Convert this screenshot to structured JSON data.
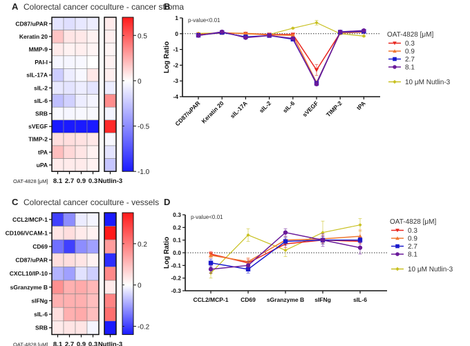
{
  "chart_data": [
    {
      "id": "A",
      "type": "heatmap",
      "panel_letter": "A",
      "title": "Colorectal cancer coculture - cancer stroma",
      "rows": [
        "CD87/uPAR",
        "Keratin 20",
        "MMP-9",
        "PAI-I",
        "sIL-17A",
        "sIL-2",
        "sIL-6",
        "SRB",
        "sVEGF",
        "TIMP-2",
        "tPA",
        "uPA"
      ],
      "x_prefix": "OAT-4828 [μM]",
      "columns": [
        "8.1",
        "2.7",
        "0.9",
        "0.3",
        "Nutlin-3"
      ],
      "values": [
        [
          -0.12,
          -0.14,
          -0.1,
          -0.08,
          0.06
        ],
        [
          0.18,
          0.08,
          0.07,
          0.04,
          0.05
        ],
        [
          0.06,
          0.04,
          0.05,
          0.03,
          0.03
        ],
        [
          -0.04,
          -0.04,
          -0.03,
          0.0,
          0.04
        ],
        [
          -0.22,
          -0.08,
          -0.03,
          0.07,
          0.05
        ],
        [
          -0.1,
          -0.12,
          -0.08,
          -0.12,
          -0.08
        ],
        [
          -0.28,
          -0.2,
          -0.08,
          -0.05,
          0.35
        ],
        [
          -0.03,
          -0.04,
          -0.03,
          -0.03,
          -0.05
        ],
        [
          -1.0,
          -1.0,
          -1.0,
          -1.0,
          0.65
        ],
        [
          0.1,
          0.1,
          0.09,
          0.07,
          -0.03
        ],
        [
          0.2,
          0.12,
          0.08,
          0.04,
          -0.12
        ],
        [
          0.06,
          0.06,
          0.06,
          0.04,
          -0.25
        ]
      ],
      "colorbar": {
        "min": -1.0,
        "max": 0.7,
        "ticks": [
          0.5,
          0,
          -0.5,
          -1.0
        ],
        "tick_labels": [
          "0.5",
          "0",
          "-0.5",
          "-1.0"
        ]
      },
      "colors": {
        "low": "#1a1aff",
        "mid": "#ffffff",
        "high": "#ff1a1a"
      }
    },
    {
      "id": "B",
      "type": "line",
      "panel_letter": "B",
      "title": "",
      "annotation": "p-value<0.01",
      "ylabel": "Log Ratio",
      "xlabel": "",
      "ylim": [
        -4,
        1
      ],
      "yticks": [
        1,
        0,
        -1,
        -2,
        -3,
        -4
      ],
      "categories": [
        "CD87/uPAR",
        "Keratin 20",
        "sIL-17A",
        "sIL-2",
        "sIL-6",
        "sVEGF",
        "TIMP-2",
        "tPA"
      ],
      "legend_title": "OAT-4828 [μM]",
      "legend_position": "right",
      "series": [
        {
          "name": "0.3",
          "color": "#e8261f",
          "marker": "triangle-down",
          "values": [
            -0.05,
            0.05,
            0.0,
            -0.05,
            -0.05,
            -2.3,
            0.05,
            0.1
          ],
          "errors": [
            0.05,
            0.05,
            0.08,
            0.05,
            0.05,
            0.35,
            0.05,
            0.05
          ]
        },
        {
          "name": "0.9",
          "color": "#f07830",
          "marker": "triangle-up",
          "values": [
            -0.08,
            0.05,
            0.0,
            -0.08,
            -0.1,
            -3.1,
            0.05,
            0.12
          ],
          "errors": [
            0.05,
            0.05,
            0.05,
            0.05,
            0.05,
            0.1,
            0.05,
            0.05
          ]
        },
        {
          "name": "2.7",
          "color": "#1a1acc",
          "marker": "square",
          "values": [
            -0.1,
            0.08,
            -0.2,
            -0.12,
            -0.35,
            -3.15,
            0.1,
            0.15
          ],
          "errors": [
            0.05,
            0.05,
            0.05,
            0.05,
            0.05,
            0.1,
            0.05,
            0.05
          ]
        },
        {
          "name": "8.1",
          "color": "#6a1a9a",
          "marker": "circle",
          "values": [
            -0.12,
            0.12,
            -0.25,
            -0.12,
            -0.3,
            -3.2,
            0.12,
            0.2
          ],
          "errors": [
            0.05,
            0.05,
            0.05,
            0.05,
            0.05,
            0.1,
            0.05,
            0.05
          ]
        },
        {
          "name": "10 μM Nutlin-3",
          "color": "#c8c020",
          "marker": "diamond",
          "values": [
            0.02,
            0.05,
            0.03,
            -0.05,
            0.35,
            0.7,
            0.0,
            -0.15
          ],
          "errors": [
            0.05,
            0.05,
            0.05,
            0.05,
            0.05,
            0.15,
            0.05,
            0.05
          ]
        }
      ]
    },
    {
      "id": "C",
      "type": "heatmap",
      "panel_letter": "C",
      "title": "Colorectal cancer coculture - vessels",
      "rows": [
        "CCL2/MCP-1",
        "CD106/VCAM-1",
        "CD69",
        "CD87/uPAR",
        "CXCL10/IP-10",
        "sGranzyme B",
        "sIFNg",
        "sIL-6",
        "SRB"
      ],
      "x_prefix": "OAT-4828 [μM]",
      "columns": [
        "8.1",
        "2.7",
        "0.9",
        "0.3",
        "Nutlin-3"
      ],
      "values": [
        [
          -0.2,
          -0.12,
          -0.02,
          -0.01,
          -0.24
        ],
        [
          0.04,
          0.05,
          0.03,
          0.02,
          0.35
        ],
        [
          -0.15,
          -0.2,
          -0.12,
          -0.1,
          0.15
        ],
        [
          0.05,
          0.05,
          0.04,
          0.02,
          -0.22
        ],
        [
          -0.08,
          -0.1,
          -0.03,
          -0.05,
          0.18
        ],
        [
          0.17,
          0.12,
          0.13,
          0.11,
          0.03
        ],
        [
          0.12,
          0.12,
          0.12,
          0.1,
          0.19
        ],
        [
          0.05,
          0.12,
          0.13,
          0.1,
          0.22
        ],
        [
          0.03,
          0.04,
          0.04,
          -0.01,
          -0.27
        ]
      ],
      "colorbar": {
        "min": -0.24,
        "max": 0.35,
        "ticks": [
          0.2,
          0,
          -0.2
        ],
        "tick_labels": [
          "0.2",
          "0",
          "-0.2"
        ]
      },
      "colors": {
        "low": "#1a1aff",
        "mid": "#ffffff",
        "high": "#ff1a1a"
      }
    },
    {
      "id": "D",
      "type": "line",
      "panel_letter": "D",
      "title": "",
      "annotation": "p-value<0.01",
      "ylabel": "Log Ratio",
      "xlabel": "",
      "ylim": [
        -0.3,
        0.3
      ],
      "yticks": [
        0.3,
        0.2,
        0.1,
        0.0,
        -0.1,
        -0.2,
        -0.3
      ],
      "ytick_labels": [
        "0.3",
        "0.2",
        "0.1",
        "0.0",
        "-0.1",
        "-0.2",
        "-0.3"
      ],
      "categories": [
        "CCL2/MCP-1",
        "CD69",
        "sGranzyme B",
        "sIFNg",
        "sIL-6"
      ],
      "legend_title": "OAT-4828 [μM]",
      "legend_position": "right",
      "series": [
        {
          "name": "0.3",
          "color": "#e8261f",
          "marker": "triangle-down",
          "values": [
            -0.01,
            -0.08,
            0.07,
            0.1,
            0.09
          ],
          "errors": [
            0.02,
            0.03,
            0.03,
            0.03,
            0.02
          ]
        },
        {
          "name": "0.9",
          "color": "#f07830",
          "marker": "triangle-up",
          "values": [
            -0.02,
            -0.07,
            0.1,
            0.11,
            0.13
          ],
          "errors": [
            0.02,
            0.03,
            0.03,
            0.03,
            0.05
          ]
        },
        {
          "name": "2.7",
          "color": "#1a1acc",
          "marker": "square",
          "values": [
            -0.08,
            -0.13,
            0.09,
            0.1,
            0.1
          ],
          "errors": [
            0.03,
            0.03,
            0.03,
            0.03,
            0.02
          ]
        },
        {
          "name": "8.1",
          "color": "#6a1a9a",
          "marker": "circle",
          "values": [
            -0.13,
            -0.1,
            0.16,
            0.1,
            0.04
          ],
          "errors": [
            0.03,
            0.03,
            0.03,
            0.05,
            0.05
          ]
        },
        {
          "name": "10 μM Nutlin-3",
          "color": "#c8c020",
          "marker": "diamond",
          "values": [
            -0.16,
            0.14,
            0.02,
            0.16,
            0.22
          ],
          "errors": [
            0.04,
            0.05,
            0.05,
            0.09,
            0.05
          ]
        }
      ]
    }
  ]
}
